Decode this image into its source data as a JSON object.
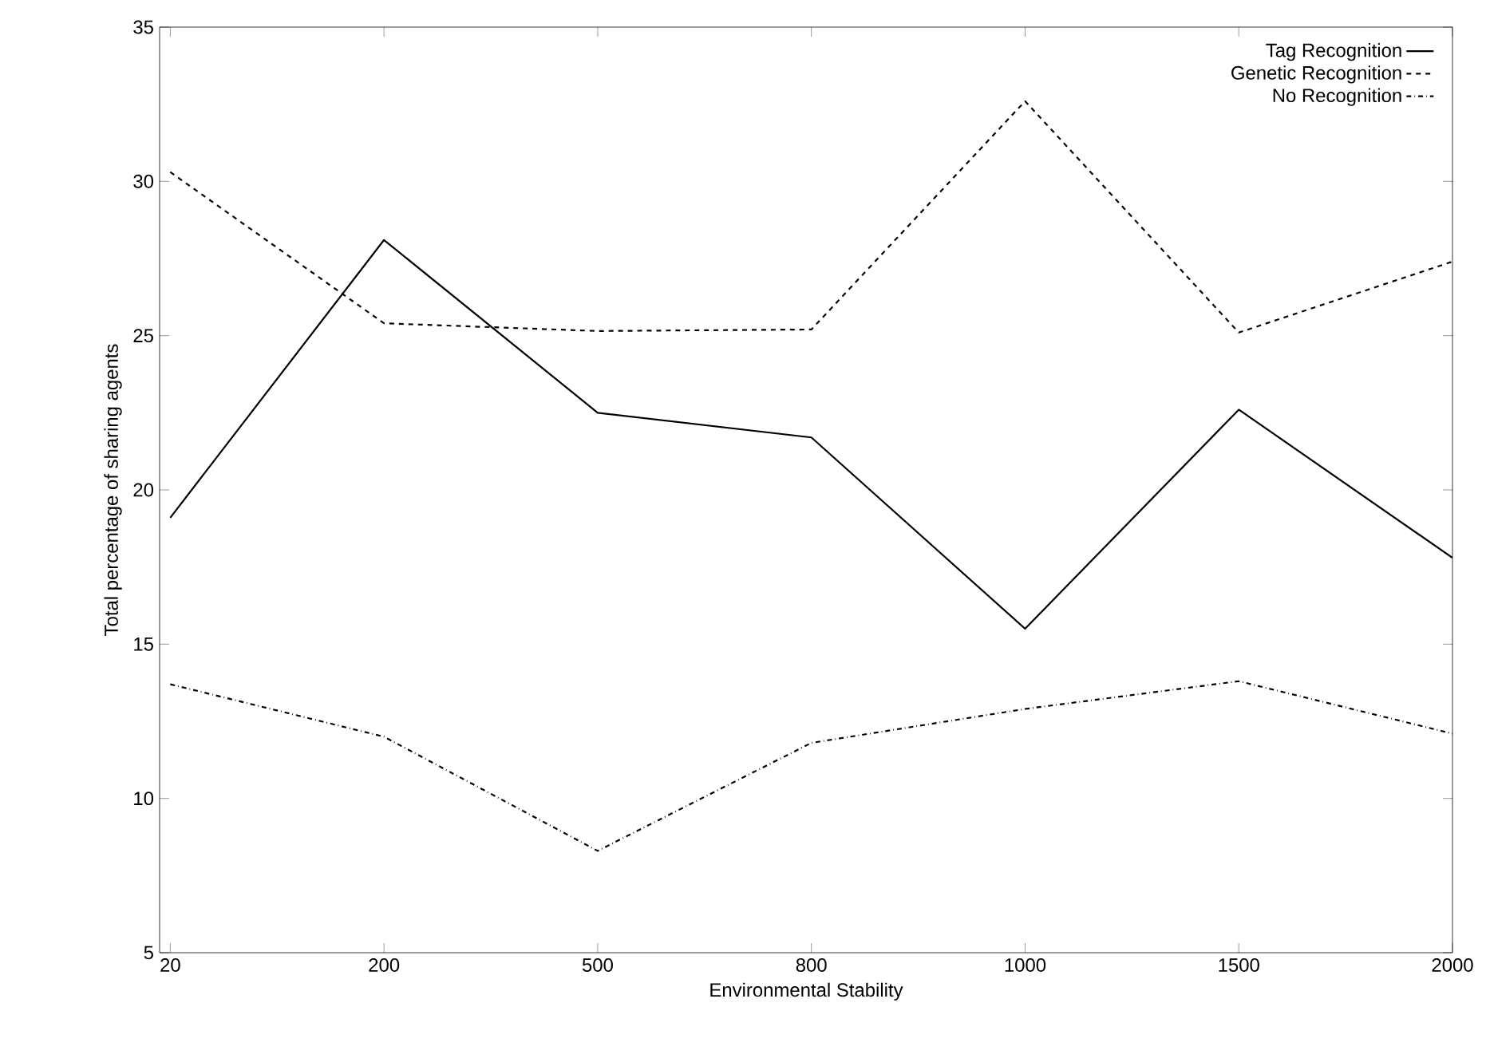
{
  "chart_data": {
    "type": "line",
    "xlabel": "Environmental Stability",
    "ylabel": "Total percentage of sharing agents",
    "categories": [
      "20",
      "200",
      "500",
      "800",
      "1000",
      "1500",
      "2000"
    ],
    "ylim": [
      5,
      35
    ],
    "yticks": [
      5,
      10,
      15,
      20,
      25,
      30,
      35
    ],
    "legend": "top right",
    "grid": false,
    "marker": "none",
    "series": [
      {
        "name": "Tag Recognition",
        "color": "#000000",
        "line_style": "solid",
        "values": [
          19.1,
          28.1,
          22.5,
          21.7,
          15.5,
          22.6,
          17.8
        ]
      },
      {
        "name": "Genetic Recognition",
        "color": "#000000",
        "line_style": "dashed",
        "values": [
          30.3,
          25.4,
          25.15,
          25.2,
          32.6,
          25.1,
          27.4
        ]
      },
      {
        "name": "No Recognition",
        "color": "#000000",
        "line_style": "dashdotted",
        "values": [
          13.7,
          12.0,
          8.3,
          11.8,
          12.9,
          13.8,
          12.1
        ]
      }
    ]
  }
}
